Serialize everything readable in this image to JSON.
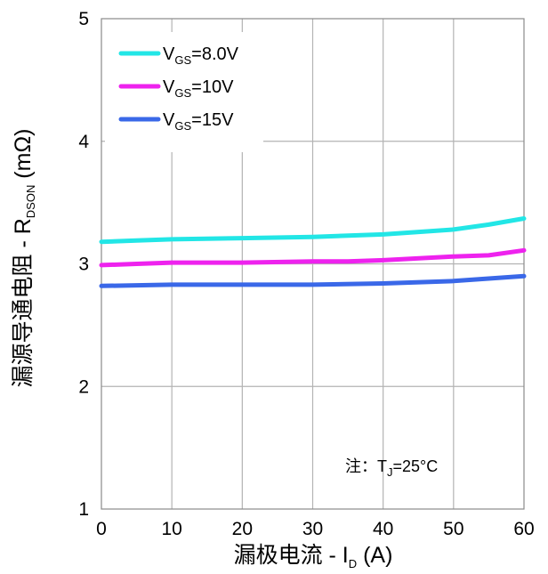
{
  "chart_data": {
    "type": "line",
    "xlabel_main": "漏极电流 - I",
    "xlabel_sub": "D",
    "xlabel_unit": " (A)",
    "ylabel_main": "漏源导通电阻 - R",
    "ylabel_sub": "DSON",
    "ylabel_unit": " (mΩ)",
    "xlim": [
      0,
      60
    ],
    "ylim": [
      1,
      5
    ],
    "x_ticks": [
      "0",
      "10",
      "20",
      "30",
      "40",
      "50",
      "60"
    ],
    "y_ticks": [
      "1",
      "2",
      "3",
      "4",
      "5"
    ],
    "grid": true,
    "legend_position": "top-left",
    "annotation": {
      "prefix": "注：T",
      "sub": "J",
      "suffix": "=25°C"
    },
    "series": [
      {
        "name_main": "V",
        "name_sub": "GS",
        "name_suffix": "=8.0V",
        "color": "#22e6e6",
        "x": [
          0,
          5,
          10,
          20,
          30,
          40,
          50,
          55,
          60
        ],
        "y": [
          3.18,
          3.19,
          3.2,
          3.21,
          3.22,
          3.24,
          3.28,
          3.32,
          3.37
        ]
      },
      {
        "name_main": "V",
        "name_sub": "GS",
        "name_suffix": "=10V",
        "color": "#ee22ee",
        "x": [
          0,
          5,
          10,
          20,
          30,
          35,
          40,
          50,
          55,
          60
        ],
        "y": [
          2.99,
          3.0,
          3.01,
          3.01,
          3.02,
          3.02,
          3.03,
          3.06,
          3.07,
          3.11
        ]
      },
      {
        "name_main": "V",
        "name_sub": "GS",
        "name_suffix": "=15V",
        "color": "#3a68e8",
        "x": [
          0,
          10,
          20,
          30,
          40,
          50,
          60
        ],
        "y": [
          2.82,
          2.83,
          2.83,
          2.83,
          2.84,
          2.86,
          2.9
        ]
      }
    ]
  }
}
